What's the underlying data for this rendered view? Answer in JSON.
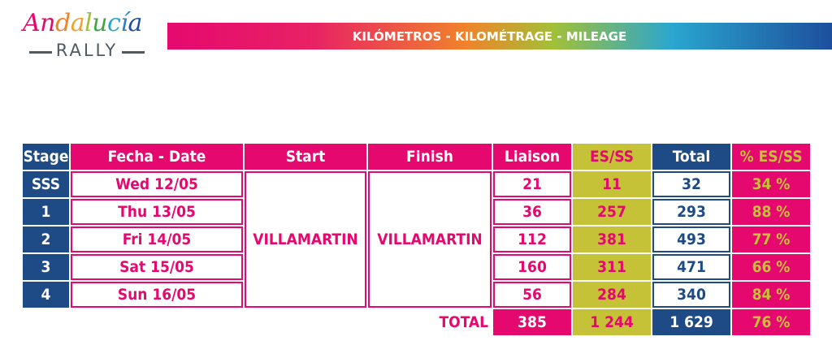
{
  "logo": {
    "word": "Andalucía",
    "subtitle": "RALLY"
  },
  "banner": {
    "title": "KILÓMETROS - KILOMÉTRAGE - MILEAGE"
  },
  "colors": {
    "pink": "#e5096f",
    "blue": "#1e4a85",
    "olive": "#c6c237"
  },
  "table": {
    "headers": {
      "stage": "Stage",
      "date": "Fecha - Date",
      "start": "Start",
      "finish": "Finish",
      "liaison": "Liaison",
      "esss": "ES/SS",
      "total": "Total",
      "pct": "% ES/SS"
    },
    "start_location": "VILLAMARTIN",
    "finish_location": "VILLAMARTIN",
    "rows": [
      {
        "stage": "SSS",
        "date": "Wed 12/05",
        "liaison": "21",
        "esss": "11",
        "total": "32",
        "pct": "34 %"
      },
      {
        "stage": "1",
        "date": "Thu 13/05",
        "liaison": "36",
        "esss": "257",
        "total": "293",
        "pct": "88 %"
      },
      {
        "stage": "2",
        "date": "Fri 14/05",
        "liaison": "112",
        "esss": "381",
        "total": "493",
        "pct": "77 %"
      },
      {
        "stage": "3",
        "date": "Sat 15/05",
        "liaison": "160",
        "esss": "311",
        "total": "471",
        "pct": "66 %"
      },
      {
        "stage": "4",
        "date": "Sun 16/05",
        "liaison": "56",
        "esss": "284",
        "total": "340",
        "pct": "84 %"
      }
    ],
    "totals": {
      "label": "TOTAL",
      "liaison": "385",
      "esss": "1 244",
      "total": "1 629",
      "pct": "76 %"
    }
  }
}
